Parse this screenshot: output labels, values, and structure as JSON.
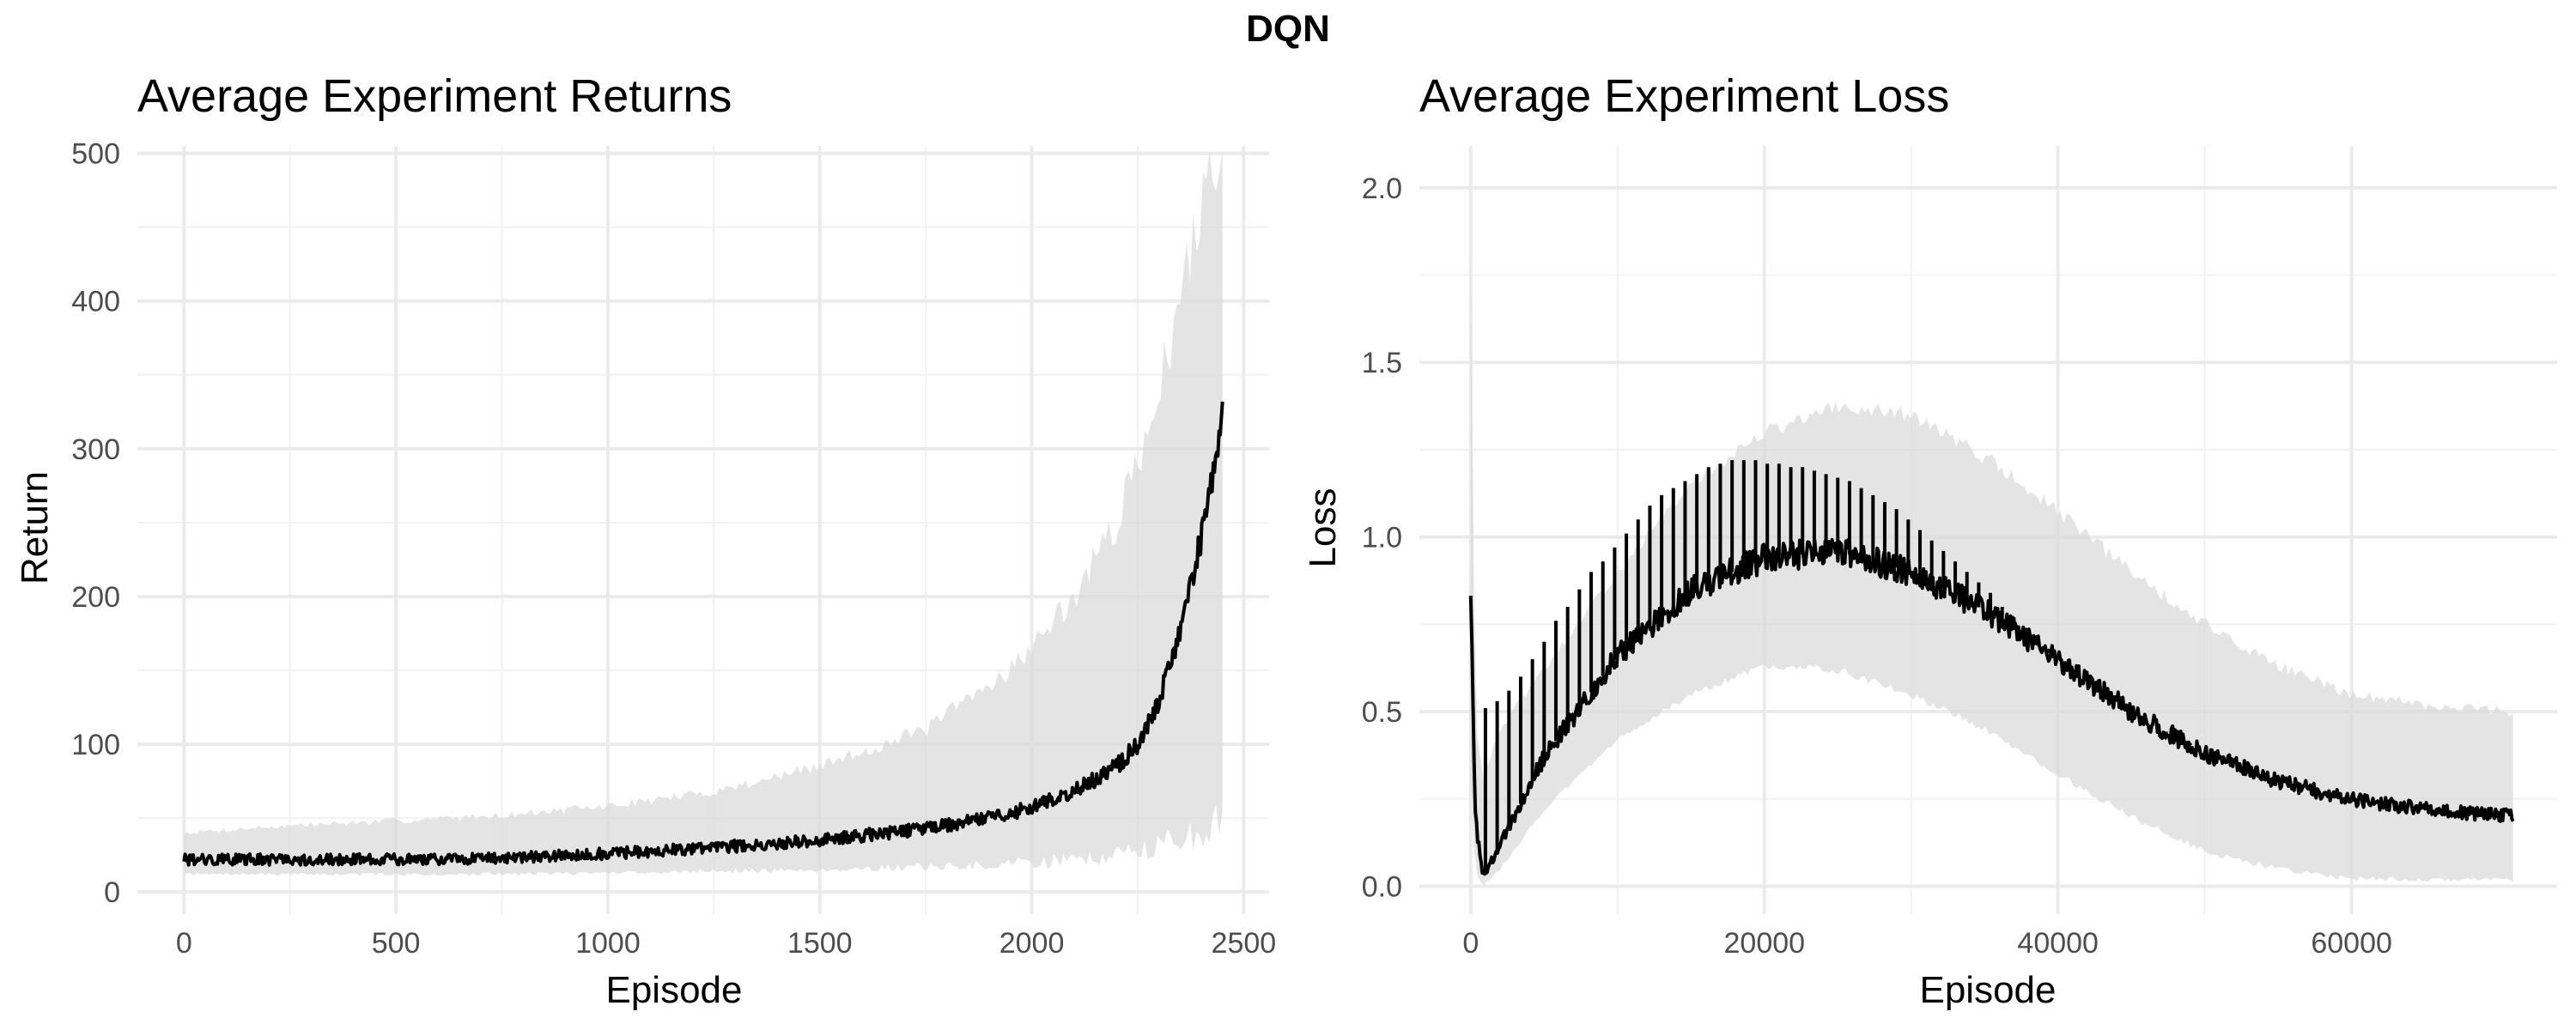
{
  "figure": {
    "title": "DQN"
  },
  "chart_data": [
    {
      "type": "line",
      "title": "Average Experiment Returns",
      "xlabel": "Episode",
      "ylabel": "Return",
      "xlim": [
        -110,
        2560
      ],
      "ylim": [
        -15,
        505
      ],
      "xticks": [
        0,
        500,
        1000,
        1500,
        2000,
        2500
      ],
      "yticks": [
        0,
        100,
        200,
        300,
        400,
        500
      ],
      "grid": true,
      "legend": "none",
      "series": [
        {
          "x": [
            0,
            250,
            500,
            750,
            1000,
            1250,
            1500,
            1750,
            1900,
            2000,
            2100,
            2200,
            2250,
            2300,
            2350,
            2400,
            2430,
            2450
          ],
          "mean": [
            22,
            22,
            22,
            23,
            26,
            30,
            35,
            43,
            50,
            57,
            68,
            85,
            100,
            130,
            175,
            240,
            285,
            320
          ],
          "lower": [
            12,
            12,
            12,
            12,
            13,
            14,
            15,
            17,
            18,
            20,
            22,
            25,
            28,
            32,
            36,
            40,
            45,
            50
          ],
          "upper": [
            40,
            45,
            48,
            52,
            58,
            68,
            85,
            110,
            140,
            165,
            200,
            250,
            290,
            340,
            400,
            460,
            500,
            500
          ]
        }
      ]
    },
    {
      "type": "line",
      "title": "Average Experiment Loss",
      "xlabel": "Episode",
      "ylabel": "Loss",
      "xlim": [
        -3500,
        74000
      ],
      "ylim": [
        -0.08,
        2.12
      ],
      "xticks": [
        0,
        20000,
        40000,
        60000
      ],
      "yticks": [
        0.0,
        0.5,
        1.0,
        1.5,
        2.0
      ],
      "ytick_labels": [
        "0.0",
        "0.5",
        "1.0",
        "1.5",
        "2.0"
      ],
      "grid": true,
      "legend": "none",
      "series": [
        {
          "x": [
            0,
            300,
            800,
            2000,
            5000,
            10000,
            15000,
            20000,
            25000,
            30000,
            35000,
            40000,
            45000,
            50000,
            55000,
            60000,
            65000,
            71000
          ],
          "mean": [
            0.84,
            0.2,
            0.03,
            0.12,
            0.37,
            0.66,
            0.85,
            0.94,
            0.96,
            0.9,
            0.79,
            0.65,
            0.5,
            0.38,
            0.3,
            0.25,
            0.22,
            0.2
          ],
          "lower": [
            0.3,
            0.05,
            0.0,
            0.05,
            0.22,
            0.42,
            0.55,
            0.63,
            0.62,
            0.55,
            0.45,
            0.32,
            0.2,
            0.1,
            0.05,
            0.02,
            0.02,
            0.02
          ],
          "upper": [
            1.85,
            0.5,
            0.3,
            0.45,
            0.62,
            0.9,
            1.15,
            1.3,
            1.37,
            1.35,
            1.23,
            1.07,
            0.9,
            0.75,
            0.63,
            0.55,
            0.52,
            0.5
          ],
          "spikes_x": [
            1000,
            1800,
            2600,
            3400,
            4200,
            5000,
            5800,
            6600,
            7400,
            8200,
            9000,
            9800,
            10600,
            11400,
            12200,
            13000,
            13800,
            14600,
            15400,
            16200,
            17000,
            17800,
            18600,
            19400,
            20200,
            21000,
            21800,
            22600,
            23400,
            24200,
            25000,
            25800,
            26600,
            27400,
            28200,
            29000,
            29800,
            30600,
            31400,
            32200,
            33000,
            33800,
            34600,
            35400,
            36200,
            37000,
            37800,
            38600,
            39400,
            40200,
            41000,
            41800,
            42600,
            43400,
            44200,
            45000,
            45800,
            46600,
            47400,
            48200,
            49000
          ],
          "spikes_y": [
            0.51,
            0.53,
            0.56,
            0.6,
            0.65,
            0.7,
            0.76,
            0.8,
            0.85,
            0.9,
            0.93,
            0.97,
            1.01,
            1.05,
            1.09,
            1.12,
            1.14,
            1.16,
            1.18,
            1.2,
            1.21,
            1.22,
            1.22,
            1.22,
            1.21,
            1.21,
            1.2,
            1.2,
            1.19,
            1.18,
            1.17,
            1.16,
            1.14,
            1.12,
            1.1,
            1.08,
            1.05,
            1.02,
            0.99,
            0.96,
            0.93,
            0.9,
            0.87,
            0.84,
            0.8,
            0.77,
            0.74,
            0.71,
            0.68,
            0.65,
            0.62,
            0.59,
            0.57,
            0.54,
            0.52,
            0.5,
            0.48,
            0.46,
            0.44,
            0.42,
            0.41
          ]
        }
      ]
    }
  ]
}
